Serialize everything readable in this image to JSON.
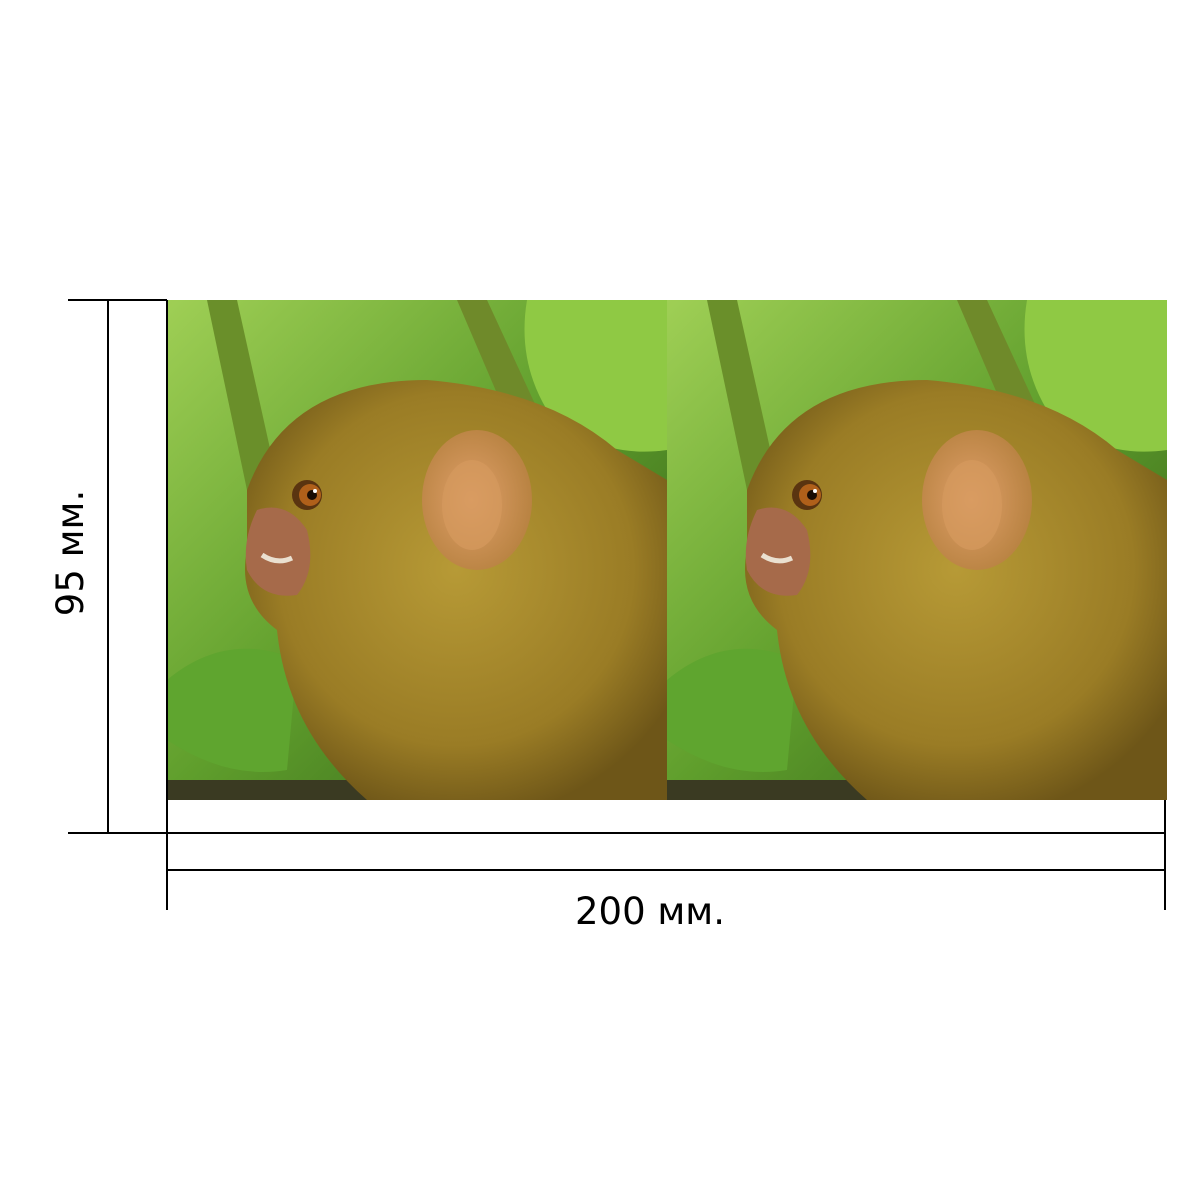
{
  "dimensions": {
    "width_label": "200 мм.",
    "height_label": "95 мм."
  },
  "photo": {
    "repeat_count": 2,
    "colors": {
      "leaf_bright": "#7fbf3a",
      "leaf_dark": "#3f7a1f",
      "fur": "#a88a2a",
      "fur_dark": "#6e5618",
      "ear": "#c98a4a",
      "eye": "#b0601a"
    }
  }
}
